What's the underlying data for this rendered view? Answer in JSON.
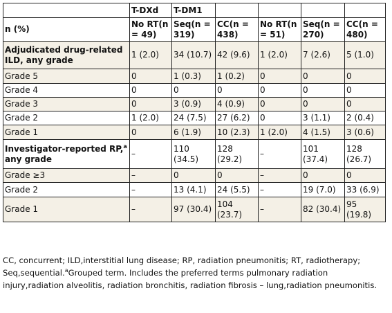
{
  "header": {
    "group1": "T-DXd",
    "group2": "T-DM1",
    "n_label": "n (%)",
    "cols": [
      "No RT(n = 49)",
      "Seq(n = 319)",
      "CC(n = 438)",
      "No RT(n = 51)",
      "Seq(n = 270)",
      "CC(n = 480)"
    ]
  },
  "rows": [
    {
      "label": "Adjudicated drug-related ILD, any grade",
      "values": [
        "1 (2.0)",
        "34 (10.7)",
        "42 (9.6)",
        "1 (2.0)",
        "7 (2.6)",
        "5 (1.0)"
      ]
    },
    {
      "label": "Grade 5",
      "values": [
        "0",
        "1 (0.3)",
        "1 (0.2)",
        "0",
        "0",
        "0"
      ]
    },
    {
      "label": "Grade 4",
      "values": [
        "0",
        "0",
        "0",
        "0",
        "0",
        "0"
      ]
    },
    {
      "label": "Grade 3",
      "values": [
        "0",
        "3 (0.9)",
        "4 (0.9)",
        "0",
        "0",
        "0"
      ]
    },
    {
      "label": "Grade 2",
      "values": [
        "1 (2.0)",
        "24 (7.5)",
        "27 (6.2)",
        "0",
        "3 (1.1)",
        "2 (0.4)"
      ]
    },
    {
      "label": "Grade 1",
      "values": [
        "0",
        "6 (1.9)",
        "10 (2.3)",
        "1 (2.0)",
        "4 (1.5)",
        "3 (0.6)"
      ]
    },
    {
      "label": "Investigator-reported RP,",
      "label_sup": "a",
      "label_line2": "any grade",
      "values": [
        "–",
        "110 (34.5)",
        "128 (29.2)",
        "–",
        "101 (37.4)",
        "128 (26.7)"
      ]
    },
    {
      "label": "Grade ≥3",
      "values": [
        "–",
        "0",
        "0",
        "–",
        "0",
        "0"
      ]
    },
    {
      "label": "Grade 2",
      "values": [
        "–",
        "13 (4.1)",
        "24 (5.5)",
        "–",
        "19 (7.0)",
        "33 (6.9)"
      ]
    },
    {
      "label": "Grade 1",
      "values": [
        "–",
        "97 (30.4)",
        "104 (23.7)",
        "–",
        "82 (30.4)",
        "95 (19.8)"
      ]
    }
  ],
  "footnote": {
    "text1": "CC, concurrent; ILD,interstitial lung disease; RP, radiation pneumonitis; RT, radiotherapy; Seq,sequential.",
    "sup": "a",
    "text2": "Grouped term. Includes the preferred terms pulmonary radiation injury,radiation alveolitis, radiation bronchitis, radiation fibrosis – lung,radiation pneumonitis."
  }
}
